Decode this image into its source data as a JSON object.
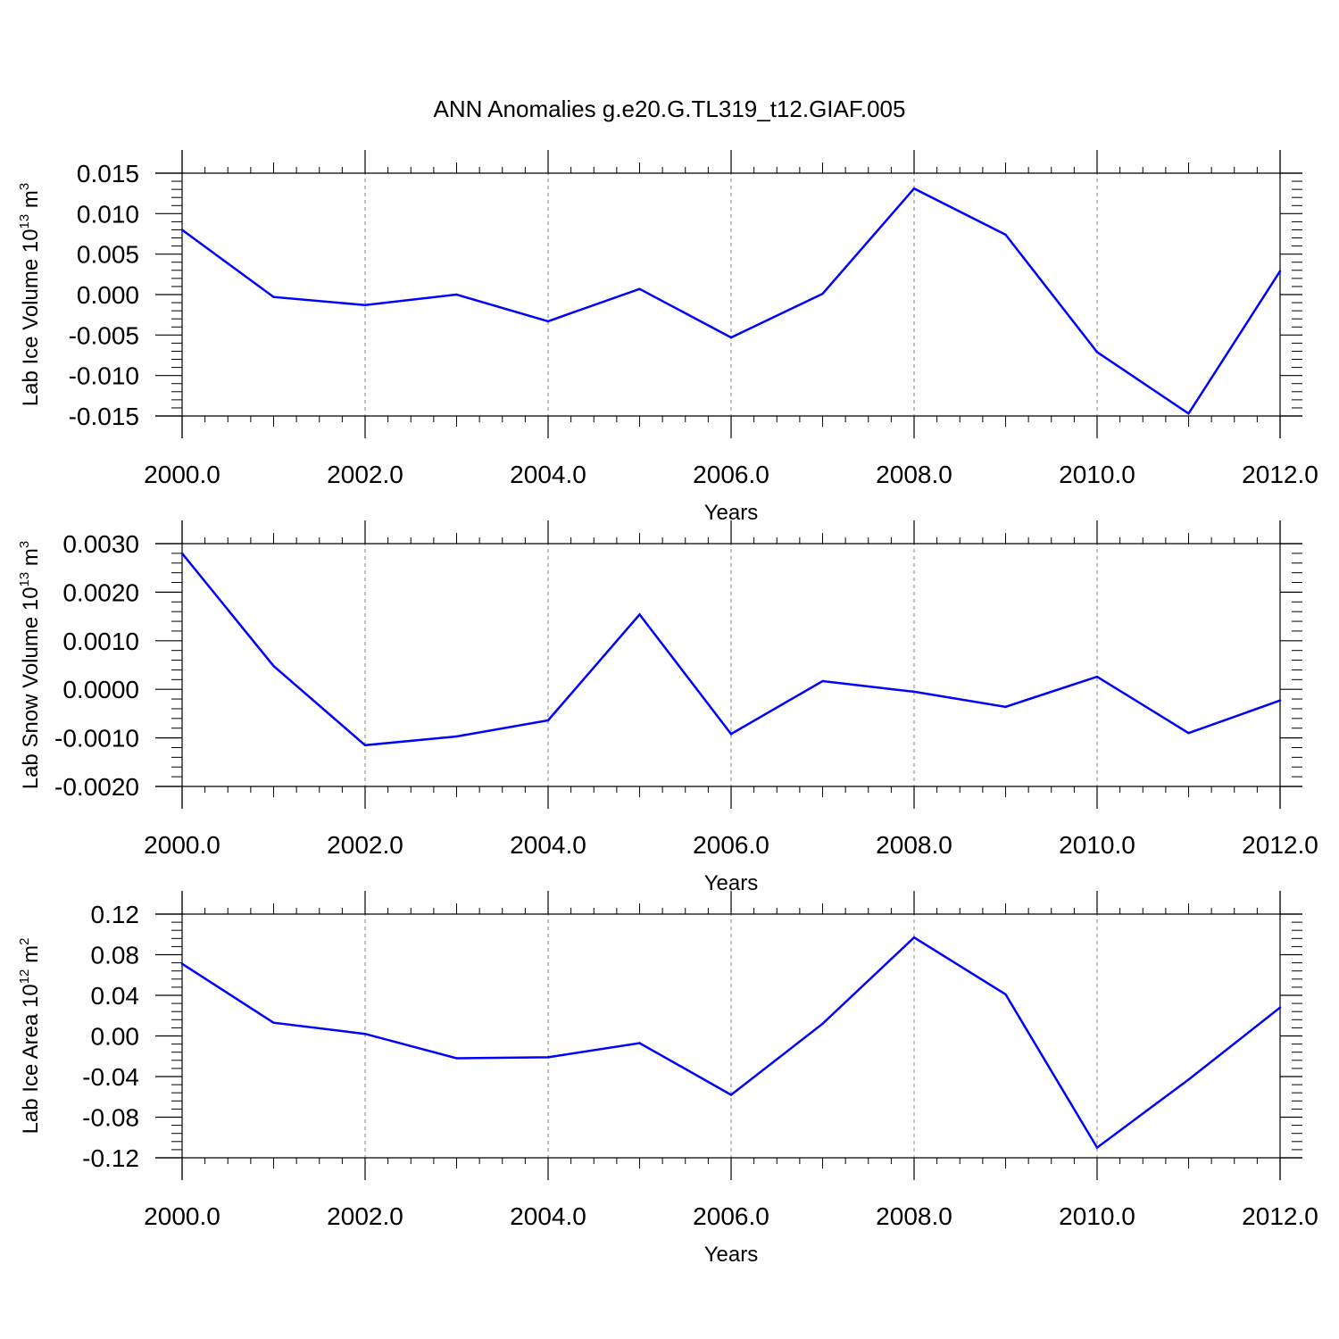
{
  "title": "ANN Anomalies g.e20.G.TL319_t12.GIAF.005",
  "colors": {
    "line": "#0000ff",
    "axis": "#000000",
    "grid": "#808080"
  },
  "chart_data": [
    {
      "type": "line",
      "xlabel": "Years",
      "ylabel": {
        "text": "Lab Ice Volume 10",
        "exp": "13",
        "unit": " m",
        "unit_exp": "3"
      },
      "xlim": [
        2000,
        2012
      ],
      "ylim": [
        -0.015,
        0.015
      ],
      "x_ticks": [
        "2000.0",
        "2002.0",
        "2004.0",
        "2006.0",
        "2008.0",
        "2010.0",
        "2012.0"
      ],
      "y_ticks": [
        "-0.015",
        "-0.010",
        "-0.005",
        "0.000",
        "0.005",
        "0.010",
        "0.015"
      ],
      "x": [
        2000,
        2001,
        2002,
        2003,
        2004,
        2005,
        2006,
        2007,
        2008,
        2009,
        2010,
        2011,
        2012
      ],
      "values": [
        0.008,
        -0.0003,
        -0.0013,
        0.0,
        -0.0033,
        0.0007,
        -0.0053,
        0.0001,
        0.0131,
        0.0074,
        -0.0071,
        -0.0147,
        0.0029
      ]
    },
    {
      "type": "line",
      "xlabel": "Years",
      "ylabel": {
        "text": "Lab Snow Volume 10",
        "exp": "13",
        "unit": " m",
        "unit_exp": "3"
      },
      "xlim": [
        2000,
        2012
      ],
      "ylim": [
        -0.002,
        0.003
      ],
      "x_ticks": [
        "2000.0",
        "2002.0",
        "2004.0",
        "2006.0",
        "2008.0",
        "2010.0",
        "2012.0"
      ],
      "y_ticks": [
        "-0.0020",
        "-0.0010",
        "0.0000",
        "0.0010",
        "0.0020",
        "0.0030"
      ],
      "x": [
        2000,
        2001,
        2002,
        2003,
        2004,
        2005,
        2006,
        2007,
        2008,
        2009,
        2010,
        2011,
        2012
      ],
      "values": [
        0.0028,
        0.00048,
        -0.00115,
        -0.00097,
        -0.00064,
        0.00154,
        -0.00092,
        0.00017,
        -5e-05,
        -0.00036,
        0.00026,
        -0.0009,
        -0.00023
      ]
    },
    {
      "type": "line",
      "xlabel": "Years",
      "ylabel": {
        "text": "Lab Ice Area 10",
        "exp": "12",
        "unit": " m",
        "unit_exp": "2"
      },
      "xlim": [
        2000,
        2012
      ],
      "ylim": [
        -0.12,
        0.12
      ],
      "x_ticks": [
        "2000.0",
        "2002.0",
        "2004.0",
        "2006.0",
        "2008.0",
        "2010.0",
        "2012.0"
      ],
      "y_ticks": [
        "-0.12",
        "-0.08",
        "-0.04",
        "0.00",
        "0.04",
        "0.08",
        "0.12"
      ],
      "x": [
        2000,
        2001,
        2002,
        2003,
        2004,
        2005,
        2006,
        2007,
        2008,
        2009,
        2010,
        2011,
        2012
      ],
      "values": [
        0.071,
        0.013,
        0.002,
        -0.022,
        -0.021,
        -0.007,
        -0.058,
        0.012,
        0.097,
        0.041,
        -0.11,
        -0.043,
        0.028
      ]
    }
  ]
}
